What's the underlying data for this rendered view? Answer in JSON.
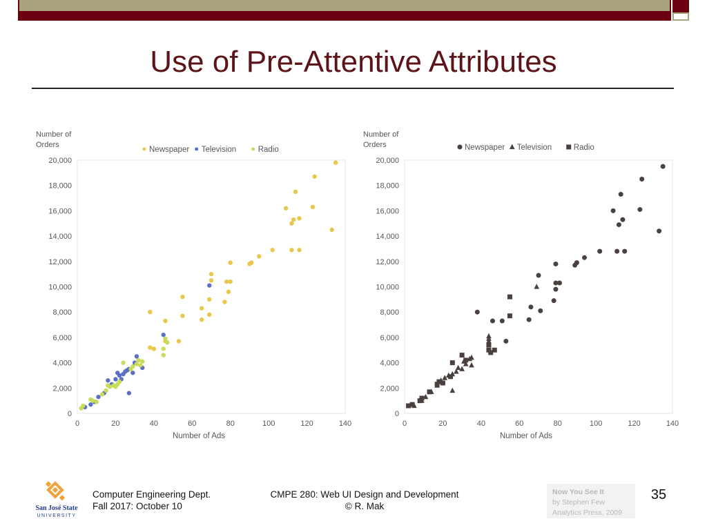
{
  "slide": {
    "title": "Use of Pre-Attentive Attributes",
    "footer_left": [
      "Computer Engineering Dept.",
      "Fall 2017: October 10"
    ],
    "footer_center": [
      "CMPE 280: Web UI Design and Development",
      "© R. Mak"
    ],
    "citation": [
      "Now You See It",
      "by Stephen Few",
      "Analytics Press, 2009"
    ],
    "page_number": "35",
    "logo_text": [
      "San José State",
      "UNIVERSITY"
    ]
  },
  "colors": {
    "title": "#5c1418",
    "bar_olive": "#a8a17d",
    "bar_maroon": "#6b0010",
    "newspaper": "#e8c84a",
    "television": "#5b6fc4",
    "radio": "#c9dc5a",
    "mono": "#4a403e",
    "logo_orange": "#f2a13a",
    "logo_blue": "#1e3f8a"
  },
  "chart_data": [
    {
      "type": "scatter",
      "ylabel": "Number of Orders",
      "xlabel": "Number of Ads",
      "xlim": [
        0,
        140
      ],
      "ylim": [
        0,
        20000
      ],
      "xticks": [
        "0",
        "20",
        "40",
        "60",
        "80",
        "100",
        "120",
        "140"
      ],
      "yticks": [
        "0",
        "2,000",
        "4,000",
        "6,000",
        "8,000",
        "10,000",
        "12,000",
        "14,000",
        "16,000",
        "18,000",
        "20,000"
      ],
      "encoding": "color",
      "legend": "top",
      "series": [
        {
          "name": "Newspaper",
          "marker": "circle",
          "points": [
            [
              38,
              8000
            ],
            [
              38,
              5200
            ],
            [
              40,
              5100
            ],
            [
              46,
              5700
            ],
            [
              46,
              7300
            ],
            [
              53,
              5700
            ],
            [
              55,
              7700
            ],
            [
              55,
              9200
            ],
            [
              65,
              8300
            ],
            [
              65,
              7400
            ],
            [
              69,
              7800
            ],
            [
              69,
              9000
            ],
            [
              70,
              10500
            ],
            [
              70,
              11000
            ],
            [
              77,
              8800
            ],
            [
              78,
              10400
            ],
            [
              79,
              9600
            ],
            [
              80,
              10400
            ],
            [
              80,
              11900
            ],
            [
              90,
              11800
            ],
            [
              91,
              11900
            ],
            [
              95,
              12400
            ],
            [
              102,
              12900
            ],
            [
              109,
              16200
            ],
            [
              112,
              12900
            ],
            [
              112,
              15000
            ],
            [
              113,
              15300
            ],
            [
              114,
              17500
            ],
            [
              116,
              15400
            ],
            [
              116,
              12900
            ],
            [
              123,
              16300
            ],
            [
              124,
              18700
            ],
            [
              133,
              14500
            ],
            [
              135,
              19800
            ]
          ]
        },
        {
          "name": "Television",
          "marker": "circle",
          "points": [
            [
              4,
              500
            ],
            [
              7,
              700
            ],
            [
              9,
              900
            ],
            [
              11,
              1300
            ],
            [
              14,
              1600
            ],
            [
              16,
              2600
            ],
            [
              18,
              2300
            ],
            [
              20,
              2700
            ],
            [
              21,
              3200
            ],
            [
              22,
              3000
            ],
            [
              23,
              2700
            ],
            [
              24,
              3100
            ],
            [
              25,
              3300
            ],
            [
              26,
              3400
            ],
            [
              27,
              3500
            ],
            [
              27,
              1600
            ],
            [
              29,
              3200
            ],
            [
              30,
              4000
            ],
            [
              31,
              4500
            ],
            [
              34,
              3600
            ],
            [
              45,
              6200
            ],
            [
              69,
              10100
            ]
          ]
        },
        {
          "name": "Radio",
          "marker": "circle",
          "points": [
            [
              2,
              400
            ],
            [
              3,
              600
            ],
            [
              7,
              1100
            ],
            [
              8,
              1000
            ],
            [
              10,
              900
            ],
            [
              13,
              1500
            ],
            [
              15,
              1800
            ],
            [
              16,
              2200
            ],
            [
              17,
              2100
            ],
            [
              19,
              2200
            ],
            [
              20,
              2100
            ],
            [
              21,
              2300
            ],
            [
              22,
              2500
            ],
            [
              24,
              4000
            ],
            [
              28,
              3500
            ],
            [
              29,
              3700
            ],
            [
              31,
              3900
            ],
            [
              32,
              4200
            ],
            [
              33,
              3800
            ],
            [
              34,
              4100
            ],
            [
              45,
              5100
            ],
            [
              45,
              4600
            ],
            [
              46,
              5900
            ],
            [
              47,
              5600
            ]
          ]
        }
      ]
    },
    {
      "type": "scatter",
      "ylabel": "Number of Orders",
      "xlabel": "Number of Ads",
      "xlim": [
        0,
        140
      ],
      "ylim": [
        0,
        20000
      ],
      "xticks": [
        "0",
        "20",
        "40",
        "60",
        "80",
        "100",
        "120",
        "140"
      ],
      "yticks": [
        "0",
        "2,000",
        "4,000",
        "6,000",
        "8,000",
        "10,000",
        "12,000",
        "14,000",
        "16,000",
        "18,000",
        "20,000"
      ],
      "encoding": "shape",
      "legend": "top",
      "series": [
        {
          "name": "Newspaper",
          "marker": "circle",
          "points": [
            [
              38,
              8000
            ],
            [
              46,
              7300
            ],
            [
              51,
              7300
            ],
            [
              53,
              5700
            ],
            [
              65,
              7400
            ],
            [
              66,
              8400
            ],
            [
              71,
              8100
            ],
            [
              70,
              10900
            ],
            [
              78,
              8900
            ],
            [
              79,
              10300
            ],
            [
              79,
              11800
            ],
            [
              79,
              9800
            ],
            [
              81,
              10300
            ],
            [
              89,
              11700
            ],
            [
              90,
              11900
            ],
            [
              94,
              12300
            ],
            [
              102,
              12800
            ],
            [
              109,
              16000
            ],
            [
              111,
              12800
            ],
            [
              112,
              14900
            ],
            [
              113,
              17300
            ],
            [
              114,
              15300
            ],
            [
              115,
              12800
            ],
            [
              123,
              16100
            ],
            [
              124,
              18500
            ],
            [
              133,
              14400
            ],
            [
              135,
              19500
            ]
          ]
        },
        {
          "name": "Television",
          "marker": "triangle",
          "points": [
            [
              5,
              600
            ],
            [
              9,
              1000
            ],
            [
              11,
              1300
            ],
            [
              14,
              1700
            ],
            [
              17,
              2200
            ],
            [
              19,
              2600
            ],
            [
              21,
              2800
            ],
            [
              23,
              3000
            ],
            [
              25,
              3100
            ],
            [
              25,
              1800
            ],
            [
              27,
              3300
            ],
            [
              28,
              3600
            ],
            [
              30,
              3500
            ],
            [
              31,
              4100
            ],
            [
              32,
              3900
            ],
            [
              34,
              4300
            ],
            [
              35,
              3800
            ],
            [
              35,
              4400
            ],
            [
              44,
              5900
            ],
            [
              44,
              6100
            ],
            [
              44,
              5700
            ],
            [
              69,
              10000
            ]
          ]
        },
        {
          "name": "Radio",
          "marker": "square",
          "points": [
            [
              2,
              600
            ],
            [
              4,
              700
            ],
            [
              8,
              1000
            ],
            [
              9,
              1200
            ],
            [
              13,
              1700
            ],
            [
              17,
              2300
            ],
            [
              18,
              2500
            ],
            [
              20,
              2400
            ],
            [
              24,
              2900
            ],
            [
              25,
              4000
            ],
            [
              30,
              4600
            ],
            [
              32,
              4200
            ],
            [
              44,
              5400
            ],
            [
              44,
              5000
            ],
            [
              45,
              4800
            ],
            [
              47,
              5000
            ],
            [
              55,
              9200
            ],
            [
              55,
              7700
            ]
          ]
        }
      ]
    }
  ]
}
